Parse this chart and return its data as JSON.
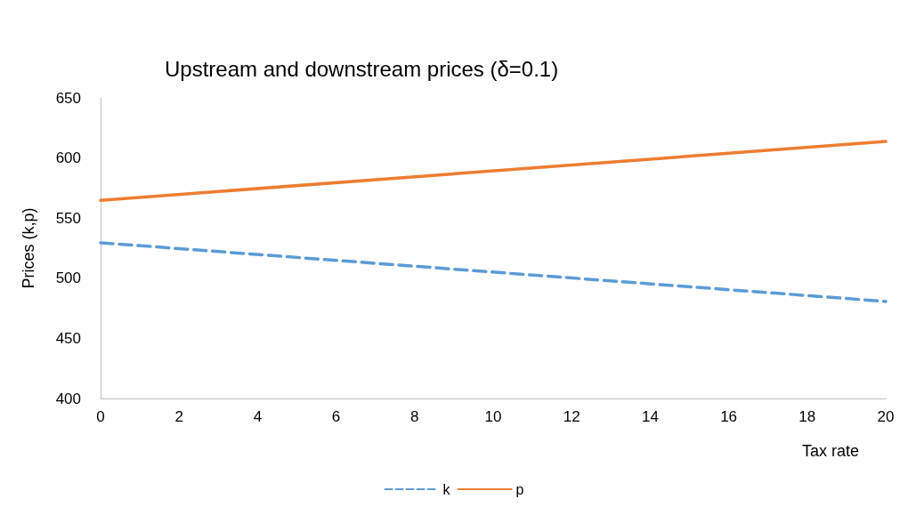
{
  "chart_data": {
    "type": "line",
    "title": "Upstream and downstream prices (δ=0.1)",
    "xlabel": "Tax rate",
    "ylabel": "Prices (k,p)",
    "xlim": [
      0,
      20
    ],
    "xticks": [
      0,
      2,
      4,
      6,
      8,
      10,
      12,
      14,
      16,
      18,
      20
    ],
    "ylim": [
      400,
      650
    ],
    "yticks": [
      400,
      450,
      500,
      550,
      600,
      650
    ],
    "x": [
      0,
      20
    ],
    "grid": false,
    "legend": "bottom",
    "marker": "none",
    "series": [
      {
        "name": "k",
        "color": "#5b9bd5",
        "line_style": "dashed",
        "values": [
          529.5,
          480.7
        ]
      },
      {
        "name": "p",
        "color": "#ed7d31",
        "line_style": "solid",
        "values": [
          564.8,
          613.7
        ]
      }
    ]
  }
}
